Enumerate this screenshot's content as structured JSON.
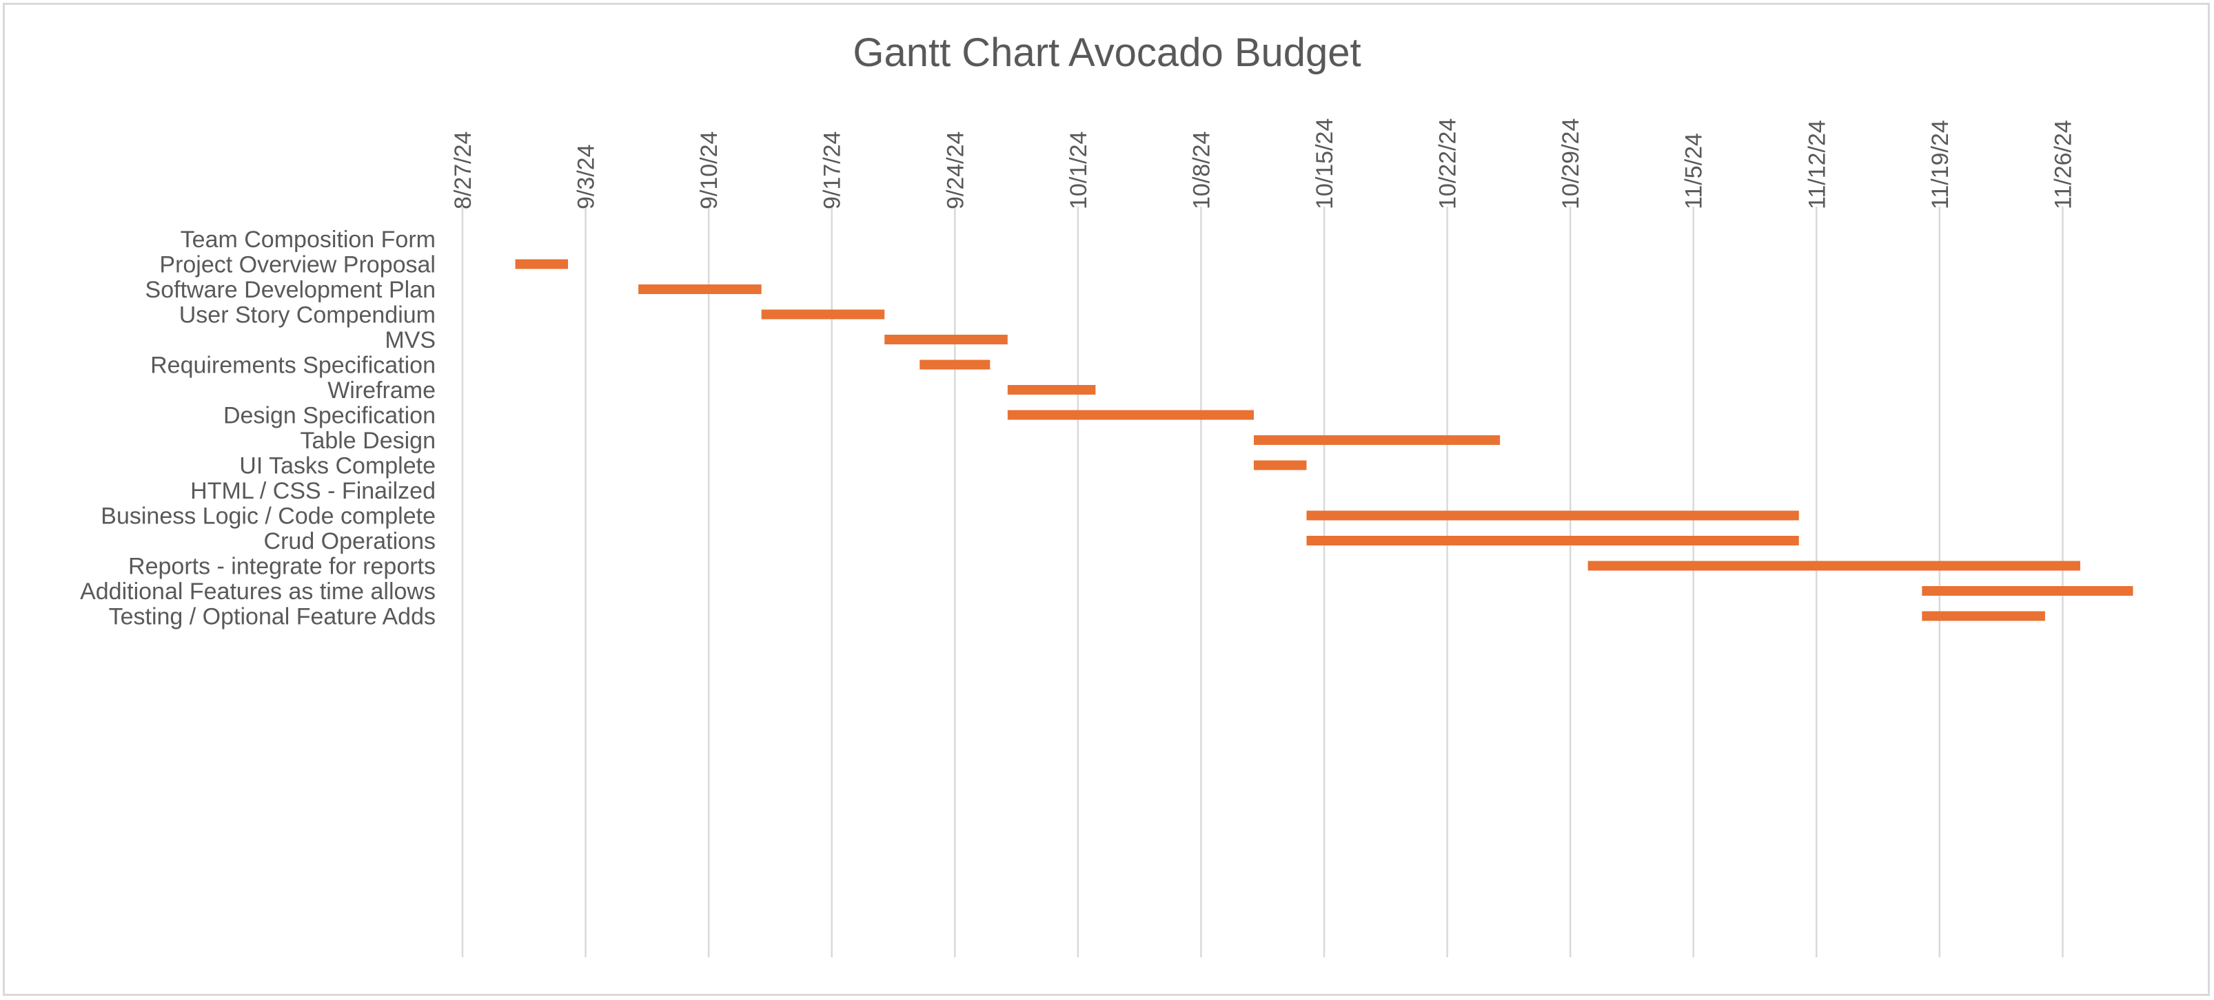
{
  "chart_data": {
    "type": "bar",
    "subtype": "gantt",
    "title": "Gantt Chart Avocado Budget",
    "xlabel": "",
    "ylabel": "",
    "x_axis_position": "top",
    "grid": true,
    "legend": "none",
    "bar_color": "#E97132",
    "x_ticks": [
      "8/27/24",
      "9/3/24",
      "9/10/24",
      "9/17/24",
      "9/24/24",
      "10/1/24",
      "10/8/24",
      "10/15/24",
      "10/22/24",
      "10/29/24",
      "11/5/24",
      "11/12/24",
      "11/19/24",
      "11/26/24"
    ],
    "xlim": [
      "2024-08-27",
      "2024-12-01"
    ],
    "tasks": [
      {
        "name": "Team Composition Form",
        "start": "2024-08-30",
        "end": "2024-08-30"
      },
      {
        "name": "Project Overview Proposal",
        "start": "2024-08-30",
        "end": "2024-09-02"
      },
      {
        "name": "Software Development Plan",
        "start": "2024-09-06",
        "end": "2024-09-13"
      },
      {
        "name": "User Story Compendium",
        "start": "2024-09-13",
        "end": "2024-09-20"
      },
      {
        "name": "MVS",
        "start": "2024-09-20",
        "end": "2024-09-27"
      },
      {
        "name": "Requirements Specification",
        "start": "2024-09-22",
        "end": "2024-09-26"
      },
      {
        "name": "Wireframe",
        "start": "2024-09-27",
        "end": "2024-10-02"
      },
      {
        "name": "Design Specification",
        "start": "2024-09-27",
        "end": "2024-10-11"
      },
      {
        "name": "Table Design",
        "start": "2024-10-11",
        "end": "2024-10-25"
      },
      {
        "name": "UI Tasks Complete",
        "start": "2024-10-11",
        "end": "2024-10-14"
      },
      {
        "name": "HTML / CSS - Finailzed",
        "start": "2024-10-14",
        "end": "2024-10-14"
      },
      {
        "name": "Business Logic / Code complete",
        "start": "2024-10-14",
        "end": "2024-11-11"
      },
      {
        "name": "Crud Operations",
        "start": "2024-10-14",
        "end": "2024-11-11"
      },
      {
        "name": "Reports - integrate for reports",
        "start": "2024-10-30",
        "end": "2024-11-27"
      },
      {
        "name": "Additional Features as time allows",
        "start": "2024-11-18",
        "end": "2024-11-30"
      },
      {
        "name": "Testing / Optional Feature Adds",
        "start": "2024-11-18",
        "end": "2024-11-25"
      }
    ]
  }
}
